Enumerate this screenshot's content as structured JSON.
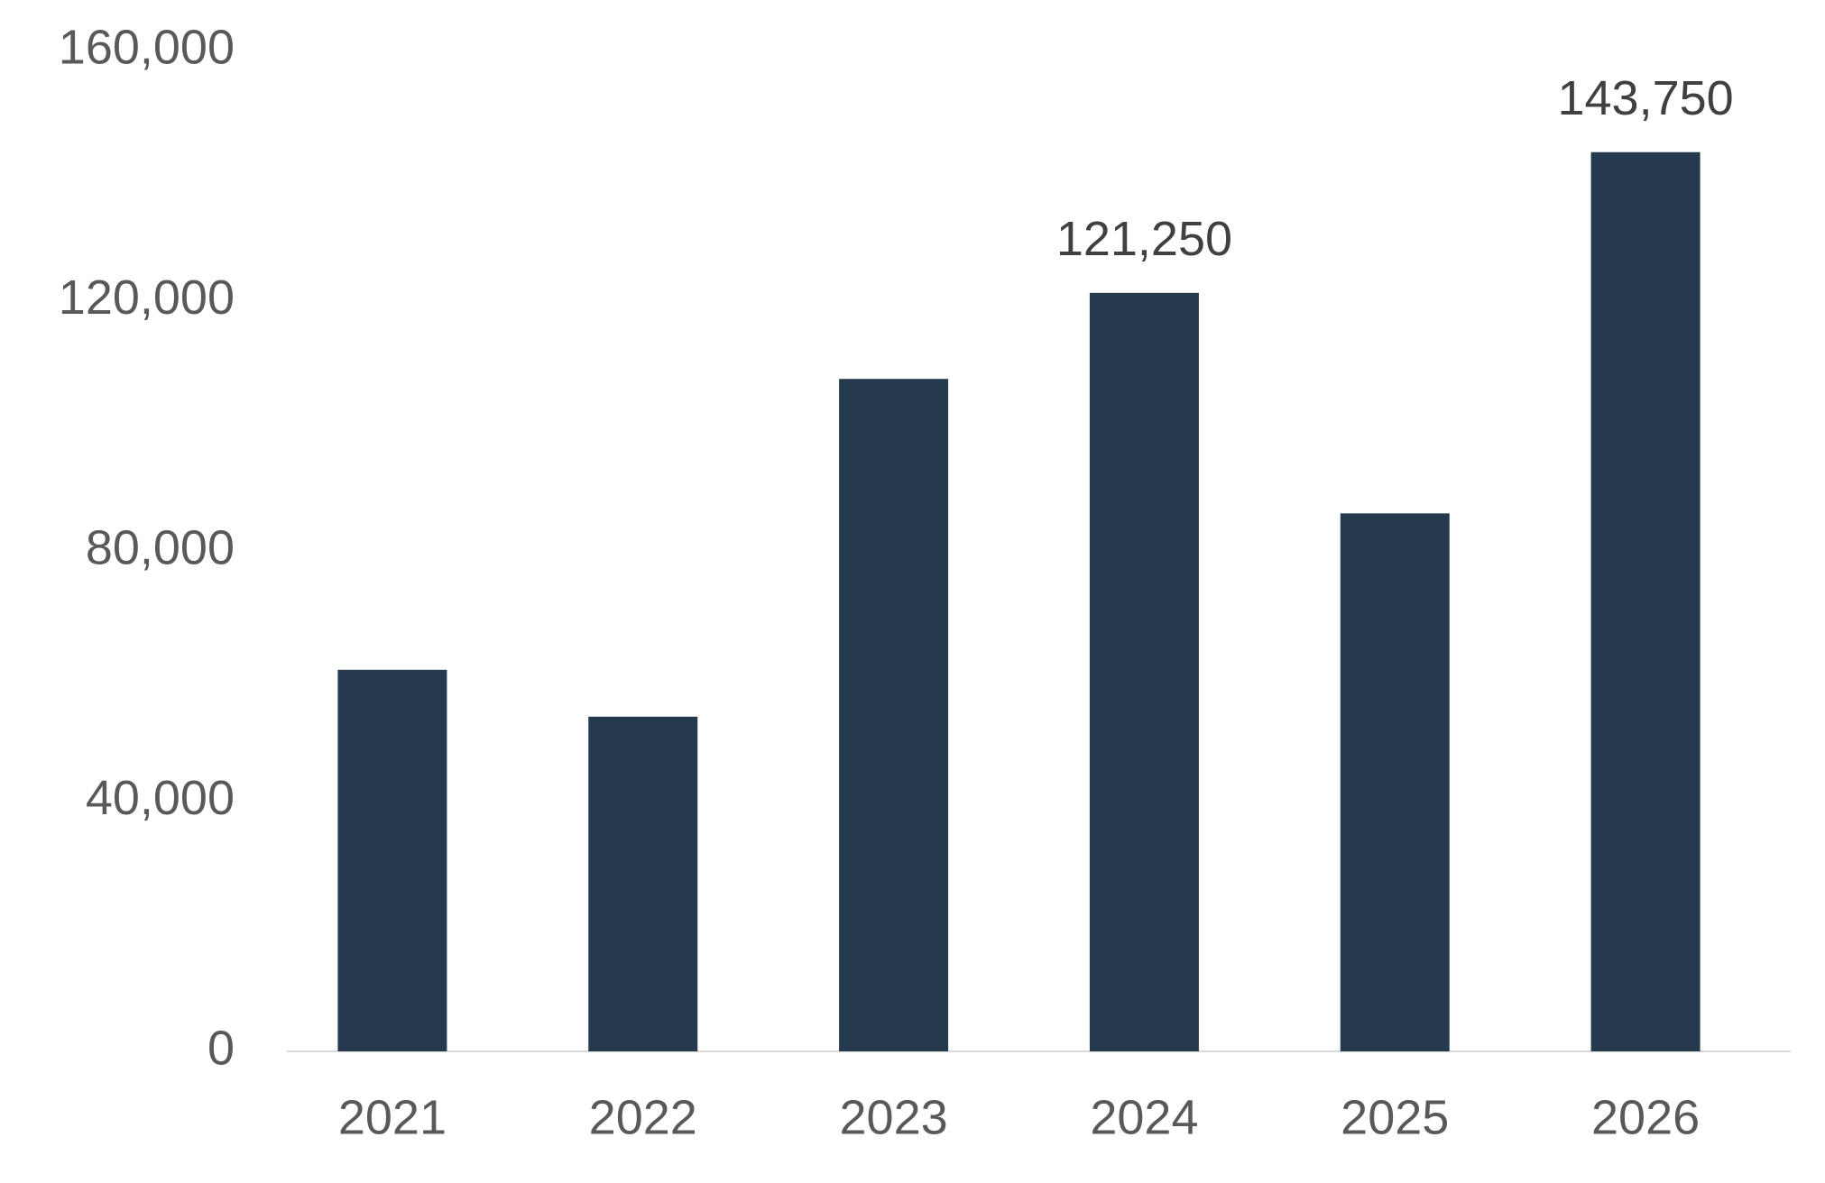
{
  "chart_data": {
    "type": "bar",
    "categories": [
      "2021",
      "2022",
      "2023",
      "2024",
      "2025",
      "2026"
    ],
    "values": [
      61000,
      53500,
      107500,
      121250,
      86000,
      143750
    ],
    "value_labels": [
      null,
      null,
      null,
      "121,250",
      null,
      "143,750"
    ],
    "color": "#253a4f",
    "ylim": [
      0,
      160000
    ],
    "yticks": [
      0,
      {
        "value": 40000,
        "label": "40,000"
      },
      {
        "value": 80000,
        "label": "80,000"
      },
      {
        "value": 120000,
        "label": "120,000"
      },
      {
        "value": 160000,
        "label": "160,000"
      }
    ],
    "grid": false
  }
}
